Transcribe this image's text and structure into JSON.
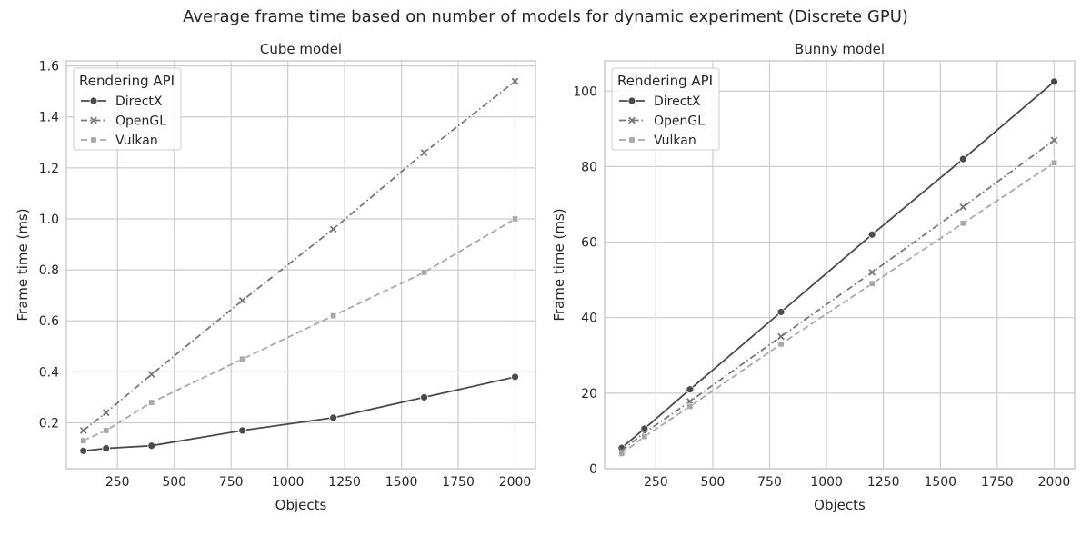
{
  "figure": {
    "suptitle": "Average frame time based on number of models for dynamic experiment (Discrete GPU)"
  },
  "chart_data": [
    {
      "type": "line",
      "title": "Cube model",
      "xlabel": "Objects",
      "ylabel": "Frame time (ms)",
      "xlim": [
        25,
        2090
      ],
      "ylim": [
        0.02,
        1.62
      ],
      "xticks": [
        250,
        500,
        750,
        1000,
        1250,
        1500,
        1750,
        2000
      ],
      "yticks": [
        0.2,
        0.4,
        0.6,
        0.8,
        1.0,
        1.2,
        1.4,
        1.6
      ],
      "ytick_labels": [
        "0.2",
        "0.4",
        "0.6",
        "0.8",
        "1.0",
        "1.2",
        "1.4",
        "1.6"
      ],
      "grid": true,
      "legend": {
        "title": "Rendering API",
        "placement": "upper-left"
      },
      "x": [
        100,
        200,
        400,
        800,
        1200,
        1600,
        2000
      ],
      "series": [
        {
          "name": "DirectX",
          "color": "#4a4a4a",
          "marker": "circle",
          "dash": "solid",
          "values": [
            0.09,
            0.1,
            0.11,
            0.17,
            0.22,
            0.3,
            0.38
          ]
        },
        {
          "name": "OpenGL",
          "color": "#777777",
          "marker": "x",
          "dash": "dashdot",
          "values": [
            0.17,
            0.24,
            0.39,
            0.68,
            0.96,
            1.26,
            1.54
          ]
        },
        {
          "name": "Vulkan",
          "color": "#a8a8a8",
          "marker": "square",
          "dash": "dashed",
          "values": [
            0.13,
            0.17,
            0.28,
            0.45,
            0.62,
            0.79,
            1.0
          ]
        }
      ]
    },
    {
      "type": "line",
      "title": "Bunny model",
      "xlabel": "Objects",
      "ylabel": "Frame time (ms)",
      "xlim": [
        25,
        2090
      ],
      "ylim": [
        0,
        108
      ],
      "xticks": [
        250,
        500,
        750,
        1000,
        1250,
        1500,
        1750,
        2000
      ],
      "yticks": [
        0,
        20,
        40,
        60,
        80,
        100
      ],
      "ytick_labels": [
        "0",
        "20",
        "40",
        "60",
        "80",
        "100"
      ],
      "grid": true,
      "legend": {
        "title": "Rendering API",
        "placement": "upper-left"
      },
      "x": [
        100,
        200,
        400,
        800,
        1200,
        1600,
        2000
      ],
      "series": [
        {
          "name": "DirectX",
          "color": "#4a4a4a",
          "marker": "circle",
          "dash": "solid",
          "values": [
            5.5,
            10.6,
            21.0,
            41.5,
            62.0,
            82.0,
            102.5
          ]
        },
        {
          "name": "OpenGL",
          "color": "#777777",
          "marker": "x",
          "dash": "dashdot",
          "values": [
            4.8,
            9.5,
            17.8,
            35.0,
            52.0,
            69.3,
            87.0
          ]
        },
        {
          "name": "Vulkan",
          "color": "#a8a8a8",
          "marker": "square",
          "dash": "dashed",
          "values": [
            4.0,
            8.5,
            16.5,
            33.0,
            49.0,
            65.0,
            81.0
          ]
        }
      ]
    }
  ]
}
